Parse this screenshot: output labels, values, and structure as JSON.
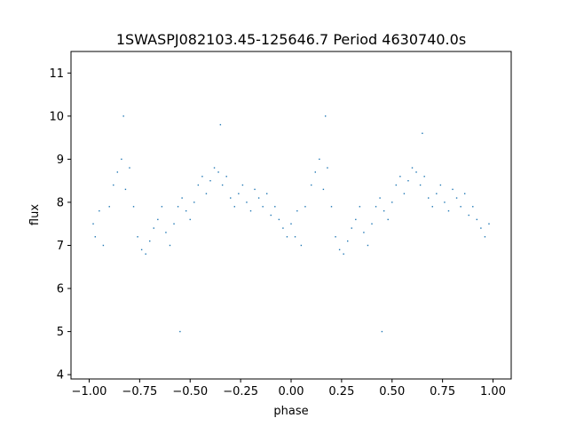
{
  "chart_data": {
    "type": "scatter",
    "title": "1SWASPJ082103.45-125646.7 Period 4630740.0s",
    "xlabel": "phase",
    "ylabel": "flux",
    "xlim": [
      -1.09,
      1.09
    ],
    "ylim": [
      3.9,
      11.5
    ],
    "xticks": [
      -1.0,
      -0.75,
      -0.5,
      -0.25,
      0.0,
      0.25,
      0.5,
      0.75,
      1.0
    ],
    "xtick_labels": [
      "−1.00",
      "−0.75",
      "−0.50",
      "−0.25",
      "0.00",
      "0.25",
      "0.50",
      "0.75",
      "1.00"
    ],
    "yticks": [
      4,
      5,
      6,
      7,
      8,
      9,
      10,
      11
    ],
    "ytick_labels": [
      "4",
      "5",
      "6",
      "7",
      "8",
      "9",
      "10",
      "11"
    ],
    "grid": false,
    "marker_color": "#1f77b4",
    "series": [
      {
        "x": [
          -0.98,
          -0.97,
          -0.95,
          -0.93,
          -0.9,
          -0.88,
          -0.86,
          -0.84,
          -0.82,
          -0.8,
          -0.78,
          -0.76,
          -0.74,
          -0.72,
          -0.7,
          -0.68,
          -0.66,
          -0.64,
          -0.62,
          -0.6,
          -0.58,
          -0.56,
          -0.54,
          -0.52,
          -0.5,
          -0.48,
          -0.46,
          -0.44,
          -0.42,
          -0.4,
          -0.38,
          -0.36,
          -0.34,
          -0.32,
          -0.3,
          -0.28,
          -0.26,
          -0.24,
          -0.22,
          -0.2,
          -0.18,
          -0.16,
          -0.14,
          -0.12,
          -0.1,
          -0.08,
          -0.06,
          -0.04,
          -0.02,
          0.0,
          0.02,
          0.03,
          0.05,
          0.07,
          0.1,
          0.12,
          0.14,
          0.16,
          0.18,
          0.2,
          0.22,
          0.24,
          0.26,
          0.28,
          0.3,
          0.32,
          0.34,
          0.36,
          0.38,
          0.4,
          0.42,
          0.44,
          0.46,
          0.48,
          0.5,
          0.52,
          0.54,
          0.56,
          0.58,
          0.6,
          0.62,
          0.64,
          0.66,
          0.68,
          0.7,
          0.72,
          0.74,
          0.76,
          0.78,
          0.8,
          0.82,
          0.84,
          0.86,
          0.88,
          0.9,
          0.92,
          0.94,
          0.96,
          0.98,
          -0.83,
          0.17,
          -0.55,
          0.45,
          -0.35,
          0.65
        ],
        "y": [
          7.5,
          7.2,
          7.8,
          7.0,
          7.9,
          8.4,
          8.7,
          9.0,
          8.3,
          8.8,
          7.9,
          7.2,
          6.9,
          6.8,
          7.1,
          7.4,
          7.6,
          7.9,
          7.3,
          7.0,
          7.5,
          7.9,
          8.1,
          7.8,
          7.6,
          8.0,
          8.4,
          8.6,
          8.2,
          8.5,
          8.8,
          8.7,
          8.4,
          8.6,
          8.1,
          7.9,
          8.2,
          8.4,
          8.0,
          7.8,
          8.3,
          8.1,
          7.9,
          8.2,
          7.7,
          7.9,
          7.6,
          7.4,
          7.2,
          7.5,
          7.2,
          7.8,
          7.0,
          7.9,
          8.4,
          8.7,
          9.0,
          8.3,
          8.8,
          7.9,
          7.2,
          6.9,
          6.8,
          7.1,
          7.4,
          7.6,
          7.9,
          7.3,
          7.0,
          7.5,
          7.9,
          8.1,
          7.8,
          7.6,
          8.0,
          8.4,
          8.6,
          8.2,
          8.5,
          8.8,
          8.7,
          8.4,
          8.6,
          8.1,
          7.9,
          8.2,
          8.4,
          8.0,
          7.8,
          8.3,
          8.1,
          7.9,
          8.2,
          7.7,
          7.9,
          7.6,
          7.4,
          7.2,
          7.5,
          10.0,
          10.0,
          5.0,
          5.0,
          9.8,
          9.6
        ]
      }
    ]
  }
}
